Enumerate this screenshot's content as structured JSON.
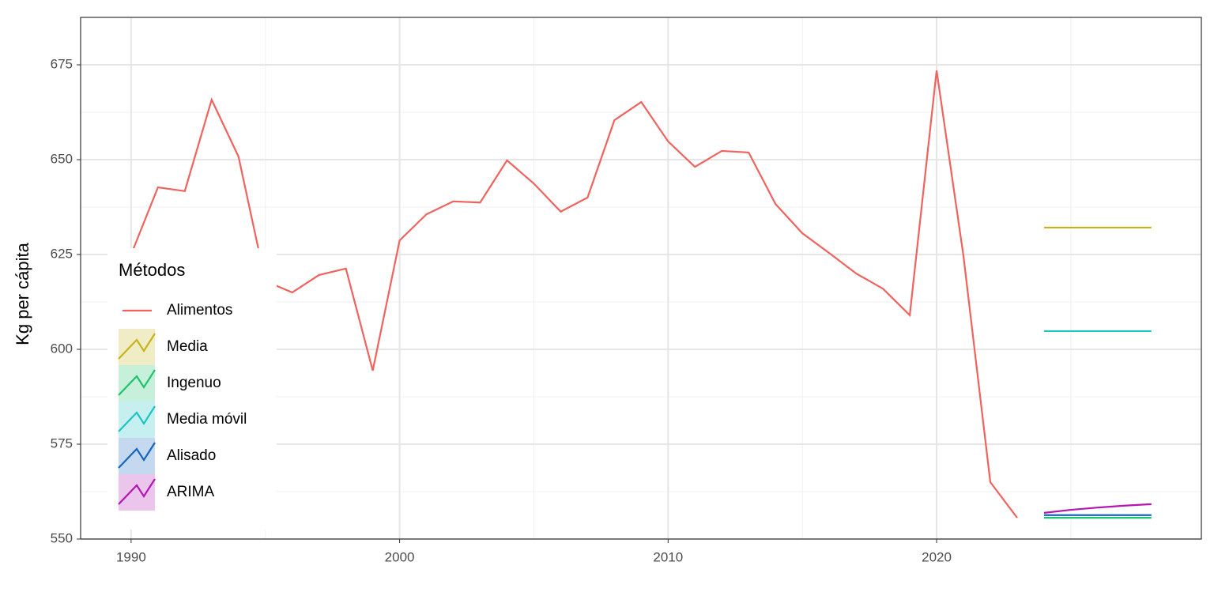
{
  "chart_data": {
    "type": "line",
    "y_label": "Kg per cápita",
    "legend_title": "Métodos",
    "legend_position": "bottom-left",
    "grid": true,
    "xlim": [
      1988.12,
      2029.86
    ],
    "ylim": [
      550,
      687.5
    ],
    "xticks": [
      1990,
      2000,
      2010,
      2020
    ],
    "yticks": [
      550,
      575,
      600,
      625,
      650,
      675
    ],
    "series": [
      {
        "name": "Alimentos",
        "color": "#f0625d",
        "x": [
          1990,
          1991,
          1992,
          1993,
          1994,
          1995,
          1996,
          1997,
          1998,
          1999,
          2000,
          2001,
          2002,
          2003,
          2004,
          2005,
          2006,
          2007,
          2008,
          2009,
          2010,
          2011,
          2012,
          2013,
          2014,
          2015,
          2016,
          2017,
          2018,
          2019,
          2020,
          2021,
          2022,
          2023
        ],
        "values": [
          625,
          642.7,
          641.7,
          665.8,
          650.8,
          618,
          615,
          619.6,
          621.3,
          594.4,
          628.7,
          635.6,
          639,
          638.7,
          649.8,
          643.7,
          636.3,
          640,
          660.4,
          665.2,
          654.8,
          648.1,
          652.3,
          651.9,
          638.3,
          630.6,
          625.4,
          620,
          616,
          609,
          673.5,
          624.6,
          565,
          555.6
        ]
      },
      {
        "name": "Media",
        "color": "#c4b41a",
        "x": [
          2024,
          2025,
          2026,
          2027,
          2028
        ],
        "values": [
          632.1,
          632.1,
          632.1,
          632.1,
          632.1
        ]
      },
      {
        "name": "Ingenuo",
        "color": "#1ec46a",
        "x": [
          2024,
          2025,
          2026,
          2027,
          2028
        ],
        "values": [
          555.6,
          555.6,
          555.6,
          555.6,
          555.6
        ]
      },
      {
        "name": "Media móvil",
        "color": "#1cc3c3",
        "x": [
          2024,
          2025,
          2026,
          2027,
          2028
        ],
        "values": [
          604.8,
          604.8,
          604.8,
          604.8,
          604.8
        ]
      },
      {
        "name": "Alisado",
        "color": "#1565c0",
        "x": [
          2024,
          2025,
          2026,
          2027,
          2028
        ],
        "values": [
          556.3,
          556.3,
          556.3,
          556.3,
          556.3
        ]
      },
      {
        "name": "ARIMA",
        "color": "#b316b3",
        "x": [
          2024,
          2025,
          2026,
          2027,
          2028
        ],
        "values": [
          556.9,
          557.7,
          558.3,
          558.8,
          559.2
        ]
      }
    ]
  }
}
